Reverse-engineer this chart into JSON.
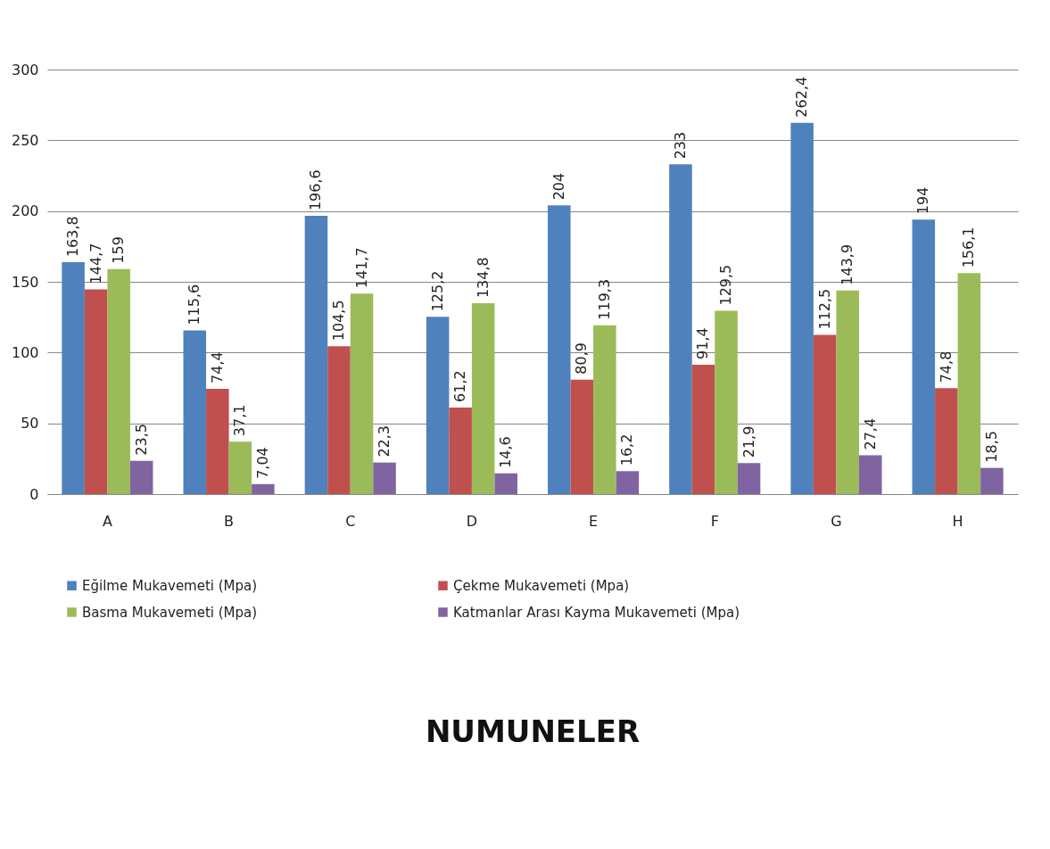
{
  "chart_data": {
    "type": "bar",
    "annotations": [
      "NUMUNELER"
    ],
    "categories": [
      "A",
      "B",
      "C",
      "D",
      "E",
      "F",
      "G",
      "H"
    ],
    "series": [
      {
        "name": "Eğilme Mukavemeti (Mpa)",
        "color": "#4f81bd",
        "values": [
          163.8,
          115.6,
          196.6,
          125.2,
          204,
          233,
          262.4,
          194
        ],
        "value_labels": [
          "163,8",
          "115,6",
          "196,6",
          "125,2",
          "204",
          "233",
          "262,4",
          "194"
        ]
      },
      {
        "name": "Çekme Mukavemeti (Mpa)",
        "color": "#c0504d",
        "values": [
          144.7,
          74.4,
          104.5,
          61.2,
          80.9,
          91.4,
          112.5,
          74.8
        ],
        "value_labels": [
          "144,7",
          "74,4",
          "104,5",
          "61,2",
          "80,9",
          "91,4",
          "112,5",
          "74,8"
        ]
      },
      {
        "name": "Basma Mukavemeti (Mpa)",
        "color": "#9bbb59",
        "values": [
          159,
          37.1,
          141.7,
          134.8,
          119.3,
          129.5,
          143.9,
          156.1
        ],
        "value_labels": [
          "159",
          "37,1",
          "141,7",
          "134,8",
          "119,3",
          "129,5",
          "143,9",
          "156,1"
        ]
      },
      {
        "name": "Katmanlar Arası Kayma Mukavemeti (Mpa)",
        "color": "#8064a2",
        "values": [
          23.5,
          7.04,
          22.3,
          14.6,
          16.2,
          21.9,
          27.4,
          18.5
        ],
        "value_labels": [
          "23,5",
          "7,04",
          "22,3",
          "14,6",
          "16,2",
          "21,9",
          "27,4",
          "18,5"
        ]
      }
    ],
    "ylim": [
      0,
      300
    ],
    "yticks": [
      0,
      50,
      100,
      150,
      200,
      250,
      300
    ],
    "grid": "y",
    "legend": "bottom"
  }
}
